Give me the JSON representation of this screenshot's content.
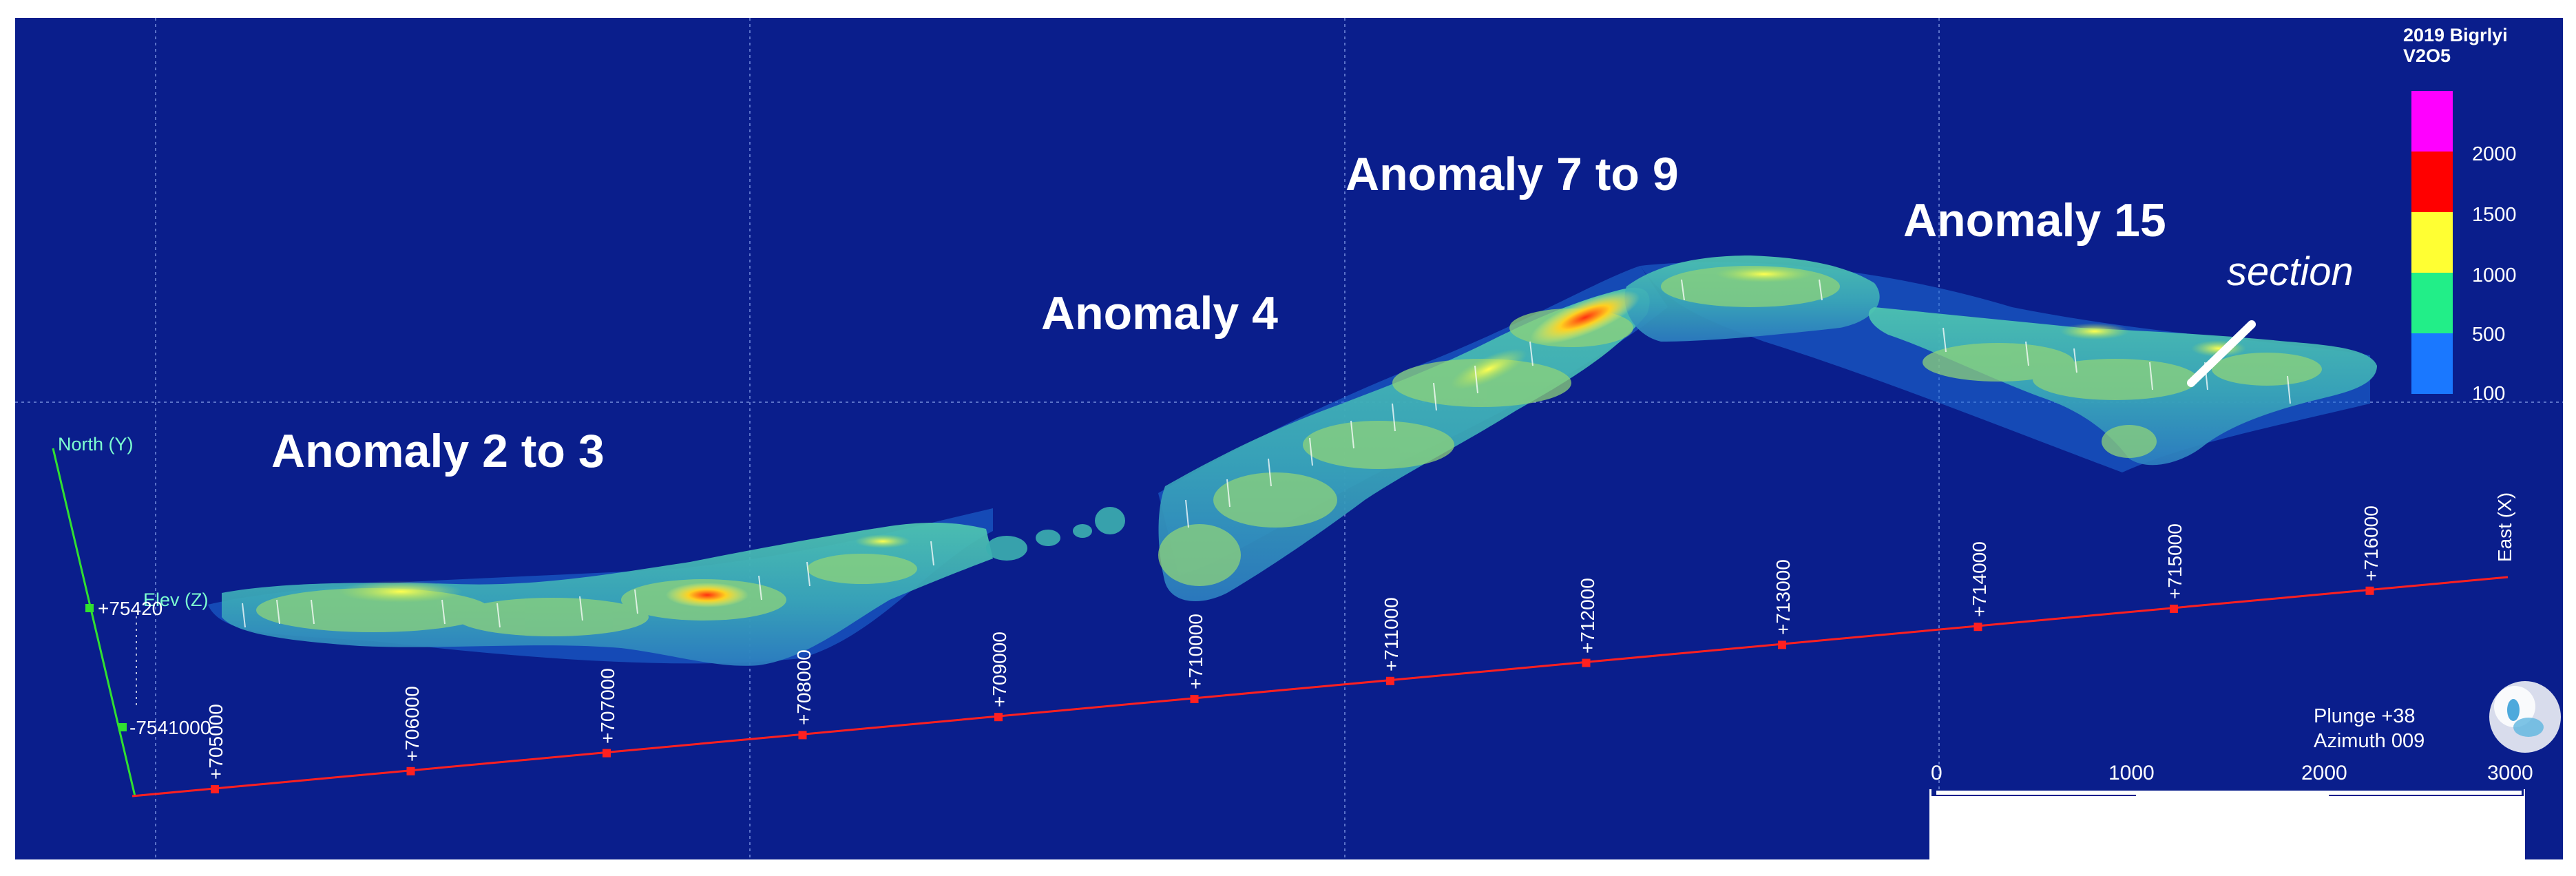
{
  "anomalies": {
    "a2_3": "Anomaly 2 to 3",
    "a4": "Anomaly 4",
    "a7_9": "Anomaly 7 to 9",
    "a15": "Anomaly 15"
  },
  "section_label": "section",
  "legend": {
    "title_line1": "2019 Bigrlyi",
    "title_line2": "V2O5",
    "levels": [
      {
        "label": "2000",
        "color": "#ff00ff"
      },
      {
        "label": "1500",
        "color": "#ff0000"
      },
      {
        "label": "1000",
        "color": "#ffff33"
      },
      {
        "label": "500",
        "color": "#22ee88"
      },
      {
        "label": "100",
        "color": "#1a78ff"
      }
    ]
  },
  "axes": {
    "north": "North (Y)",
    "elev": "Elev (Z)",
    "east": "East (X)",
    "north_ticks": [
      "+75420",
      "-7541000"
    ],
    "east_ticks": [
      "+705000",
      "+706000",
      "+707000",
      "+708000",
      "+709000",
      "+710000",
      "+711000",
      "+712000",
      "+713000",
      "+714000",
      "+715000",
      "+716000"
    ]
  },
  "view": {
    "plunge": "Plunge +38",
    "azimuth": "Azimuth 009"
  },
  "scale_bar": {
    "labels": [
      "0",
      "1000",
      "2000",
      "3000"
    ]
  },
  "colors": {
    "background": "#0a1e8c",
    "axis_east": "#ff2020",
    "axis_north": "#30e030"
  }
}
